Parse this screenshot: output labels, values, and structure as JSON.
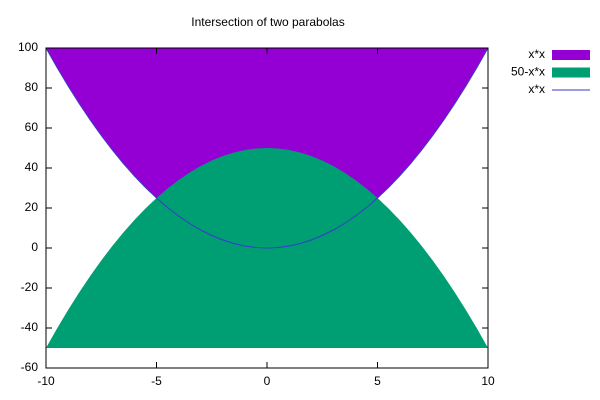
{
  "chart_data": {
    "type": "filled-line",
    "title": "Intersection of two parabolas",
    "x": [
      -10,
      -9.5,
      -9,
      -8.5,
      -8,
      -7.5,
      -7,
      -6.5,
      -6,
      -5.5,
      -5,
      -4.5,
      -4,
      -3.5,
      -3,
      -2.5,
      -2,
      -1.5,
      -1,
      -0.5,
      0,
      0.5,
      1,
      1.5,
      2,
      2.5,
      3,
      3.5,
      4,
      4.5,
      5,
      5.5,
      6,
      6.5,
      7,
      7.5,
      8,
      8.5,
      9,
      9.5,
      10
    ],
    "series": [
      {
        "name": "x*x",
        "color": "#9400d3",
        "fill": "above",
        "values": [
          100,
          90.25,
          81,
          72.25,
          64,
          56.25,
          49,
          42.25,
          36,
          30.25,
          25,
          20.25,
          16,
          12.25,
          9,
          6.25,
          4,
          2.25,
          1,
          0.25,
          0,
          0.25,
          1,
          2.25,
          4,
          6.25,
          9,
          12.25,
          16,
          20.25,
          25,
          30.25,
          36,
          42.25,
          49,
          56.25,
          64,
          72.25,
          81,
          90.25,
          100
        ]
      },
      {
        "name": "50-x*x",
        "color": "#009e73",
        "fill": "below",
        "values": [
          -50,
          -40.25,
          -31,
          -22.25,
          -14,
          -6.25,
          1,
          7.75,
          14,
          19.75,
          25,
          29.75,
          34,
          37.75,
          41,
          43.75,
          46,
          47.75,
          49,
          49.75,
          50,
          49.75,
          49,
          47.75,
          46,
          43.75,
          41,
          37.75,
          34,
          29.75,
          25,
          19.75,
          14,
          7.75,
          1,
          -6.25,
          -14,
          -22.25,
          -31,
          -40.25,
          -50
        ]
      },
      {
        "name": "x*x",
        "color": "#3a3acb",
        "fill": "none",
        "values": [
          100,
          90.25,
          81,
          72.25,
          64,
          56.25,
          49,
          42.25,
          36,
          30.25,
          25,
          20.25,
          16,
          12.25,
          9,
          6.25,
          4,
          2.25,
          1,
          0.25,
          0,
          0.25,
          1,
          2.25,
          4,
          6.25,
          9,
          12.25,
          16,
          20.25,
          25,
          30.25,
          36,
          42.25,
          49,
          56.25,
          64,
          72.25,
          81,
          90.25,
          100
        ]
      }
    ],
    "xlim": [
      -10,
      10
    ],
    "xticks": [
      -10,
      -5,
      0,
      5,
      10
    ],
    "ylim": [
      -60,
      100
    ],
    "yticks": [
      -60,
      -40,
      -20,
      0,
      20,
      40,
      60,
      80,
      100
    ],
    "grid": false,
    "legend": "outside-top-right"
  }
}
